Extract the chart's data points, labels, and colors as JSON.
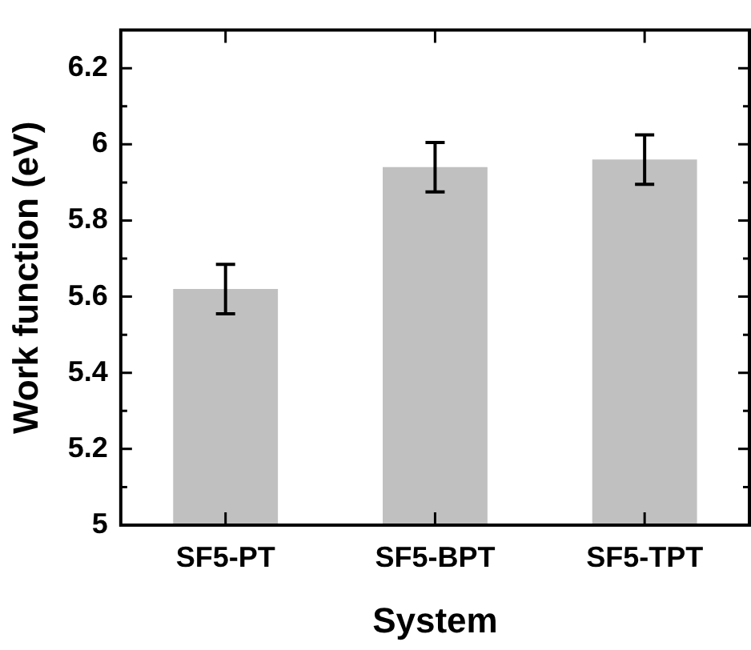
{
  "chart_data": {
    "type": "bar",
    "xlabel": "System",
    "ylabel": "Work function (eV)",
    "categories": [
      "SF5-PT",
      "SF5-BPT",
      "SF5-TPT"
    ],
    "values": [
      5.62,
      5.94,
      5.96
    ],
    "errors": [
      0.065,
      0.065,
      0.065
    ],
    "color": "#c0c0c0",
    "ylim": [
      5,
      6.3
    ],
    "yticks": [
      5,
      {
        "value": 5.1,
        "label": null
      },
      5.2,
      {
        "value": 5.3,
        "label": null
      },
      5.4,
      {
        "value": 5.5,
        "label": null
      },
      5.6,
      {
        "value": 5.7,
        "label": null
      },
      5.8,
      {
        "value": 5.9,
        "label": null
      },
      6,
      {
        "value": 6.1,
        "label": null
      },
      6.2
    ],
    "grid": false,
    "legend": false
  }
}
